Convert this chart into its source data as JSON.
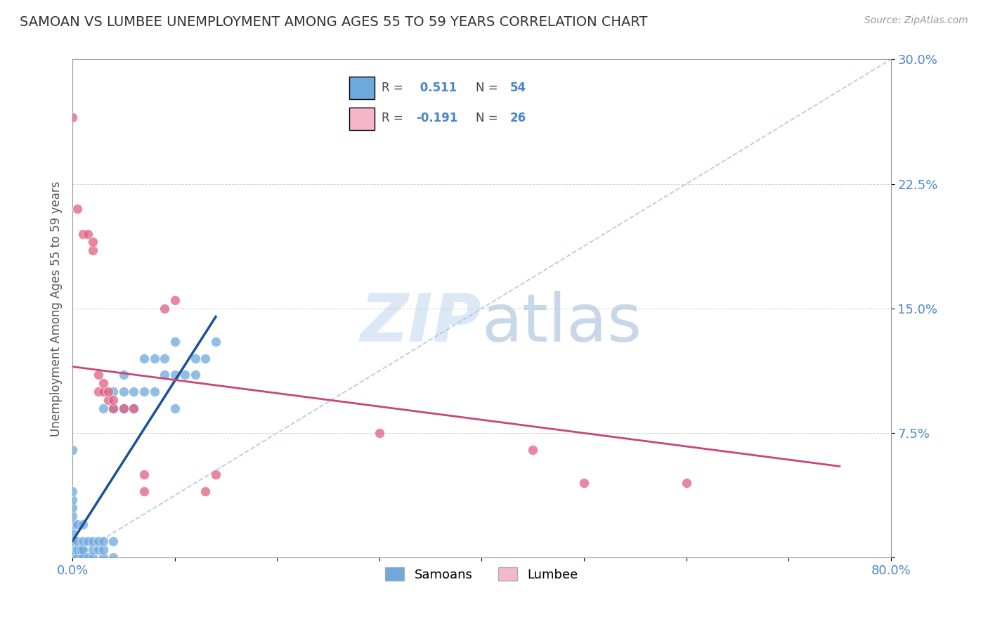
{
  "title": "SAMOAN VS LUMBEE UNEMPLOYMENT AMONG AGES 55 TO 59 YEARS CORRELATION CHART",
  "source_text": "Source: ZipAtlas.com",
  "ylabel": "Unemployment Among Ages 55 to 59 years",
  "xlim": [
    0,
    0.8
  ],
  "ylim": [
    0,
    0.3
  ],
  "xticks": [
    0.0,
    0.1,
    0.2,
    0.3,
    0.4,
    0.5,
    0.6,
    0.7,
    0.8
  ],
  "xticklabels": [
    "0.0%",
    "",
    "",
    "",
    "",
    "",
    "",
    "",
    "80.0%"
  ],
  "yticks": [
    0.0,
    0.075,
    0.15,
    0.225,
    0.3
  ],
  "yticklabels": [
    "",
    "7.5%",
    "15.0%",
    "22.5%",
    "30.0%"
  ],
  "samoan_color": "#6fa8dc",
  "lumbee_color": "#e06080",
  "samoan_R": 0.511,
  "samoan_N": 54,
  "lumbee_R": -0.191,
  "lumbee_N": 26,
  "samoan_trend_color": "#1a5296",
  "lumbee_trend_color": "#cc4477",
  "diagonal_color": "#a8c4e0",
  "grid_color": "#c0c0c0",
  "axis_color": "#999999",
  "tick_color": "#4a86c8",
  "title_color": "#333333",
  "watermark_color": "#dce8f5",
  "legend_color": "#4a86c8",
  "samoan_scatter": [
    [
      0.0,
      0.0
    ],
    [
      0.0,
      0.005
    ],
    [
      0.0,
      0.01
    ],
    [
      0.0,
      0.015
    ],
    [
      0.0,
      0.02
    ],
    [
      0.0,
      0.025
    ],
    [
      0.0,
      0.03
    ],
    [
      0.0,
      0.035
    ],
    [
      0.0,
      0.04
    ],
    [
      0.005,
      0.0
    ],
    [
      0.005,
      0.005
    ],
    [
      0.005,
      0.01
    ],
    [
      0.005,
      0.02
    ],
    [
      0.008,
      0.0
    ],
    [
      0.008,
      0.005
    ],
    [
      0.01,
      0.0
    ],
    [
      0.01,
      0.005
    ],
    [
      0.01,
      0.01
    ],
    [
      0.01,
      0.02
    ],
    [
      0.015,
      0.0
    ],
    [
      0.015,
      0.01
    ],
    [
      0.02,
      0.0
    ],
    [
      0.02,
      0.005
    ],
    [
      0.02,
      0.01
    ],
    [
      0.025,
      0.005
    ],
    [
      0.025,
      0.01
    ],
    [
      0.03,
      0.0
    ],
    [
      0.03,
      0.005
    ],
    [
      0.03,
      0.01
    ],
    [
      0.03,
      0.09
    ],
    [
      0.04,
      0.0
    ],
    [
      0.04,
      0.01
    ],
    [
      0.04,
      0.09
    ],
    [
      0.04,
      0.1
    ],
    [
      0.05,
      0.09
    ],
    [
      0.05,
      0.1
    ],
    [
      0.05,
      0.11
    ],
    [
      0.06,
      0.09
    ],
    [
      0.06,
      0.1
    ],
    [
      0.07,
      0.1
    ],
    [
      0.07,
      0.12
    ],
    [
      0.08,
      0.1
    ],
    [
      0.08,
      0.12
    ],
    [
      0.09,
      0.11
    ],
    [
      0.09,
      0.12
    ],
    [
      0.1,
      0.09
    ],
    [
      0.1,
      0.11
    ],
    [
      0.1,
      0.13
    ],
    [
      0.11,
      0.11
    ],
    [
      0.12,
      0.11
    ],
    [
      0.12,
      0.12
    ],
    [
      0.13,
      0.12
    ],
    [
      0.14,
      0.13
    ],
    [
      0.0,
      0.065
    ]
  ],
  "lumbee_scatter": [
    [
      0.0,
      0.265
    ],
    [
      0.005,
      0.21
    ],
    [
      0.01,
      0.195
    ],
    [
      0.015,
      0.195
    ],
    [
      0.02,
      0.185
    ],
    [
      0.02,
      0.19
    ],
    [
      0.025,
      0.1
    ],
    [
      0.025,
      0.11
    ],
    [
      0.03,
      0.1
    ],
    [
      0.03,
      0.105
    ],
    [
      0.035,
      0.095
    ],
    [
      0.035,
      0.1
    ],
    [
      0.04,
      0.09
    ],
    [
      0.04,
      0.095
    ],
    [
      0.05,
      0.09
    ],
    [
      0.06,
      0.09
    ],
    [
      0.07,
      0.04
    ],
    [
      0.07,
      0.05
    ],
    [
      0.09,
      0.15
    ],
    [
      0.1,
      0.155
    ],
    [
      0.13,
      0.04
    ],
    [
      0.14,
      0.05
    ],
    [
      0.3,
      0.075
    ],
    [
      0.45,
      0.065
    ],
    [
      0.5,
      0.045
    ],
    [
      0.6,
      0.045
    ]
  ],
  "samoan_trend_x": [
    0.0,
    0.14
  ],
  "samoan_trend_y": [
    0.01,
    0.145
  ],
  "lumbee_trend_x": [
    0.0,
    0.75
  ],
  "lumbee_trend_y": [
    0.115,
    0.055
  ]
}
